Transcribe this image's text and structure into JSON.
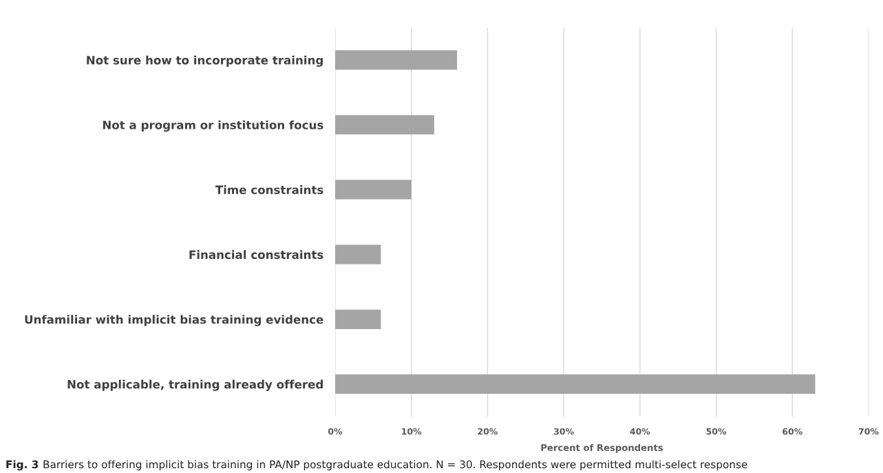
{
  "chart_data": {
    "type": "bar",
    "orientation": "horizontal",
    "categories": [
      "Not sure how to incorporate training",
      "Not a program or institution focus",
      "Time constraints",
      "Financial constraints",
      "Unfamiliar with implicit bias training evidence",
      "Not applicable, training already offered"
    ],
    "values": [
      16,
      13,
      10,
      6,
      6,
      63
    ],
    "color": "#a5a5a5",
    "xlim": [
      0,
      70
    ],
    "xticks": [
      {
        "value": 0,
        "label": "0%"
      },
      {
        "value": 10,
        "label": "10%"
      },
      {
        "value": 20,
        "label": "20%"
      },
      {
        "value": 30,
        "label": "30%"
      },
      {
        "value": 40,
        "label": "40%"
      },
      {
        "value": 50,
        "label": "50%"
      },
      {
        "value": 60,
        "label": "60%"
      },
      {
        "value": 70,
        "label": "70%"
      }
    ],
    "xlabel": "Percent of Respondents",
    "grid": "x",
    "annotations": [
      "Fig. 3",
      "Barriers to offering implicit bias training in PA/NP postgraduate education. N = 30. Respondents were permitted multi-select response"
    ]
  }
}
